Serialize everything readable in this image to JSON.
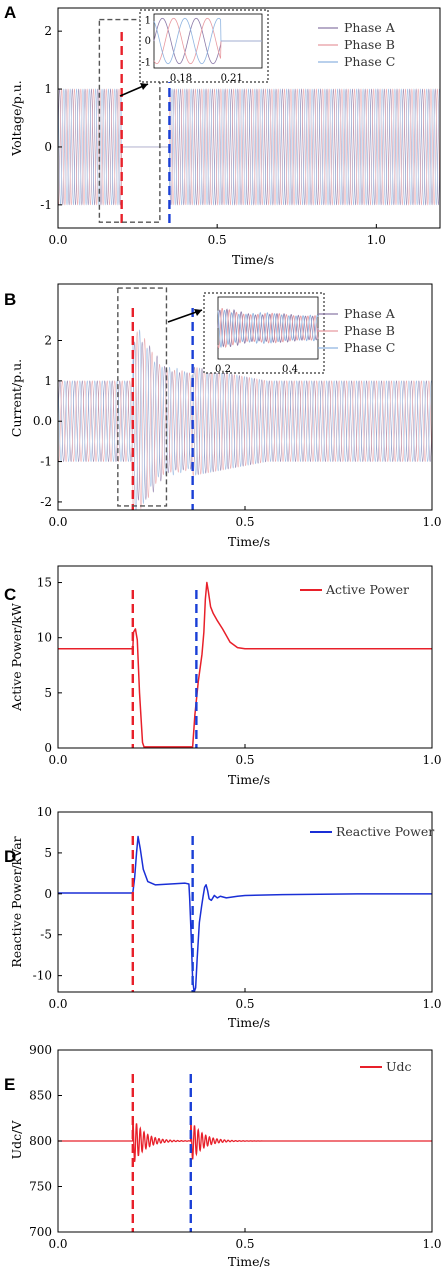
{
  "chart_data": [
    {
      "id": "A",
      "panel_label": "A",
      "type": "line",
      "xlabel": "Time/s",
      "ylabel": "Voltage/p.u.",
      "xlim": [
        0.0,
        1.2
      ],
      "ylim": [
        -1.4,
        2.4
      ],
      "xticks": [
        "0.0",
        "0.5",
        "1.0"
      ],
      "xtick_values": [
        0.0,
        0.5,
        1.0
      ],
      "yticks": [
        "2",
        "1",
        "0",
        "-1"
      ],
      "ytick_values": [
        2,
        1,
        0,
        -1
      ],
      "series": [
        {
          "name": "Phase A",
          "color": "#8c7aa8",
          "amplitude": 1.0,
          "phase_deg": 0
        },
        {
          "name": "Phase B",
          "color": "#e89aa0",
          "amplitude": 1.0,
          "phase_deg": -120
        },
        {
          "name": "Phase C",
          "color": "#8fb4e0",
          "amplitude": 1.0,
          "phase_deg": 120
        }
      ],
      "waveform": "three-phase sinusoid, 50 Hz; zero between fault start and fault clear",
      "fault_start": 0.2,
      "fault_clear": 0.35,
      "markers": [
        {
          "x": 0.2,
          "color": "#e8202a"
        },
        {
          "x": 0.35,
          "color": "#1a3fd6"
        }
      ],
      "zoom_box": {
        "x": [
          0.13,
          0.32
        ],
        "y": [
          -1.3,
          2.2
        ]
      },
      "inset": {
        "xticks": [
          "0.18",
          "0.21"
        ],
        "yticks": [
          "1",
          "0",
          "-1"
        ]
      },
      "legend_position": "top-right"
    },
    {
      "id": "B",
      "panel_label": "B",
      "type": "line",
      "xlabel": "Time/s",
      "ylabel": "Current/p.u.",
      "xlim": [
        0.0,
        1.0
      ],
      "ylim": [
        -2.2,
        3.4
      ],
      "xticks": [
        "0.0",
        "0.5",
        "1.0"
      ],
      "xtick_values": [
        0.0,
        0.5,
        1.0
      ],
      "yticks": [
        "2",
        "1",
        "0.0",
        "-1",
        "-2"
      ],
      "ytick_values": [
        2,
        1,
        0,
        -1,
        -2
      ],
      "series": [
        {
          "name": "Phase A",
          "color": "#8c7aa8",
          "amplitude": 1.0,
          "phase_deg": 0
        },
        {
          "name": "Phase B",
          "color": "#e89aa0",
          "amplitude": 1.0,
          "phase_deg": -120
        },
        {
          "name": "Phase C",
          "color": "#8fb4e0",
          "amplitude": 1.0,
          "phase_deg": 120
        }
      ],
      "waveform": "three-phase sinusoid with transient peaks near 2.3 p.u. during fault, decaying after clearance",
      "fault_start": 0.2,
      "fault_clear": 0.36,
      "markers": [
        {
          "x": 0.2,
          "color": "#e8202a"
        },
        {
          "x": 0.36,
          "color": "#1a3fd6"
        }
      ],
      "zoom_box": {
        "x": [
          0.16,
          0.29
        ],
        "y": [
          -2.1,
          3.3
        ]
      },
      "inset": {
        "xticks": [
          "0.2",
          "0.4"
        ],
        "yticks": []
      },
      "legend_position": "top-right"
    },
    {
      "id": "C",
      "panel_label": "C",
      "type": "line",
      "xlabel": "Time/s",
      "ylabel": "Active Power/kW",
      "xlim": [
        0.0,
        1.0
      ],
      "ylim": [
        0,
        16.5
      ],
      "xticks": [
        "0.0",
        "0.5",
        "1.0"
      ],
      "xtick_values": [
        0.0,
        0.5,
        1.0
      ],
      "yticks": [
        "15",
        "10",
        "5",
        "0"
      ],
      "ytick_values": [
        15,
        10,
        5,
        0
      ],
      "series": [
        {
          "name": "Active Power",
          "color": "#e8202a",
          "x": [
            0.0,
            0.2,
            0.202,
            0.207,
            0.212,
            0.218,
            0.226,
            0.23,
            0.36,
            0.366,
            0.375,
            0.385,
            0.39,
            0.394,
            0.398,
            0.402,
            0.408,
            0.415,
            0.425,
            0.44,
            0.46,
            0.48,
            0.5,
            1.0
          ],
          "y": [
            9.0,
            9.0,
            10.5,
            10.8,
            9.8,
            5.0,
            0.5,
            0.1,
            0.1,
            3.0,
            6.0,
            8.5,
            10.5,
            13.5,
            15.0,
            14.2,
            12.8,
            12.2,
            11.6,
            10.8,
            9.6,
            9.1,
            9.0,
            9.0
          ]
        }
      ],
      "markers": [
        {
          "x": 0.2,
          "color": "#e8202a"
        },
        {
          "x": 0.37,
          "color": "#1a3fd6"
        }
      ],
      "legend_position": "top-right"
    },
    {
      "id": "D",
      "panel_label": "D",
      "type": "line",
      "xlabel": "Time/s",
      "ylabel": "Reactive Power/kVar",
      "xlim": [
        0.0,
        1.0
      ],
      "ylim": [
        -12,
        10
      ],
      "xticks": [
        "0.0",
        "0.5",
        "1.0"
      ],
      "xtick_values": [
        0.0,
        0.5,
        1.0
      ],
      "yticks": [
        "10",
        "5",
        "0",
        "-5",
        "-10"
      ],
      "ytick_values": [
        10,
        5,
        0,
        -5,
        -10
      ],
      "series": [
        {
          "name": "Reactive Power",
          "color": "#1a2fd6",
          "x": [
            0.0,
            0.2,
            0.205,
            0.21,
            0.214,
            0.22,
            0.228,
            0.24,
            0.26,
            0.3,
            0.34,
            0.35,
            0.352,
            0.356,
            0.36,
            0.364,
            0.368,
            0.372,
            0.378,
            0.384,
            0.388,
            0.392,
            0.396,
            0.4,
            0.404,
            0.41,
            0.418,
            0.426,
            0.434,
            0.45,
            0.48,
            0.5,
            0.6,
            0.8,
            1.0
          ],
          "y": [
            0.1,
            0.1,
            2.0,
            5.0,
            7.0,
            5.5,
            3.0,
            1.5,
            1.1,
            1.2,
            1.3,
            1.2,
            -0.5,
            -5.0,
            -10.5,
            -12.0,
            -11.5,
            -8.0,
            -3.5,
            -1.5,
            -0.3,
            0.8,
            1.1,
            0.4,
            -0.6,
            -0.8,
            -0.2,
            -0.5,
            -0.3,
            -0.5,
            -0.3,
            -0.2,
            -0.1,
            0.0,
            0.0
          ]
        }
      ],
      "markers": [
        {
          "x": 0.2,
          "color": "#e8202a"
        },
        {
          "x": 0.36,
          "color": "#1a3fd6"
        }
      ],
      "legend_position": "top-right"
    },
    {
      "id": "E",
      "panel_label": "E",
      "type": "line",
      "xlabel": "Time/s",
      "ylabel": "Udc/V",
      "xlim": [
        0.0,
        1.0
      ],
      "ylim": [
        700,
        900
      ],
      "xticks": [
        "0.0",
        "0.5",
        "1.0"
      ],
      "xtick_values": [
        0.0,
        0.5,
        1.0
      ],
      "yticks": [
        "900",
        "850",
        "800",
        "750",
        "700"
      ],
      "ytick_values": [
        900,
        850,
        800,
        750,
        700
      ],
      "series": [
        {
          "name": "Udc",
          "color": "#e8202a",
          "base": 800,
          "events": [
            {
              "t": 0.2,
              "amplitude": 27,
              "decay_s": 0.03
            },
            {
              "t": 0.355,
              "amplitude": 24,
              "decay_s": 0.03
            }
          ]
        }
      ],
      "markers": [
        {
          "x": 0.2,
          "color": "#e8202a"
        },
        {
          "x": 0.355,
          "color": "#1a3fd6"
        }
      ],
      "legend_position": "top-right"
    }
  ]
}
